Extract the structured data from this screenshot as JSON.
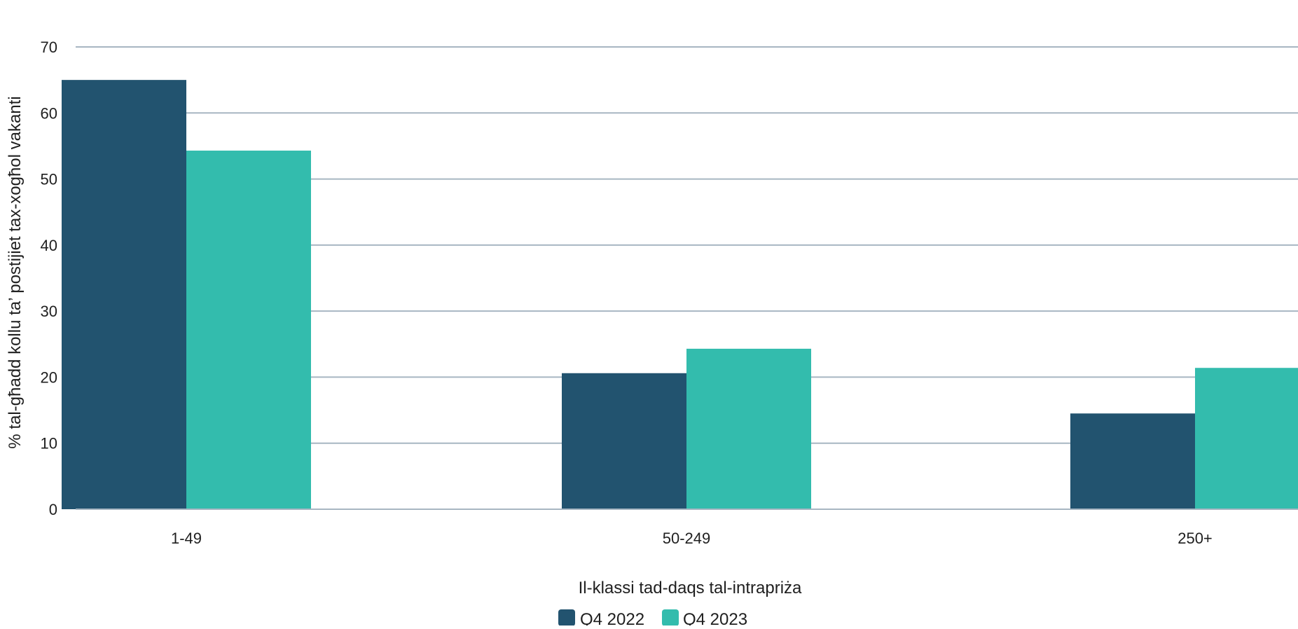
{
  "chart_data": {
    "type": "bar",
    "title": "",
    "xlabel": "Il-klassi tad-daqs tal-intrapriża",
    "ylabel": "% tal-għadd kollu ta’ postijiet tax-xogħol vakanti",
    "categories": [
      "1-49",
      "50-249",
      "250+"
    ],
    "series": [
      {
        "name": "Q4 2022",
        "values": [
          65,
          20.6,
          14.5
        ],
        "color": "#22536f"
      },
      {
        "name": "Q4 2023",
        "values": [
          54.3,
          24.3,
          21.4
        ],
        "color": "#33bcad"
      }
    ],
    "ylim": [
      0,
      70
    ],
    "yticks": [
      "0",
      "10",
      "20",
      "30",
      "40",
      "50",
      "60",
      "70"
    ],
    "grid": true,
    "legend_position": "bottom-center"
  },
  "colors": {
    "gridline": "#a7b6c2",
    "axis": "#a7b6c2",
    "text": "#1f1f1f"
  }
}
